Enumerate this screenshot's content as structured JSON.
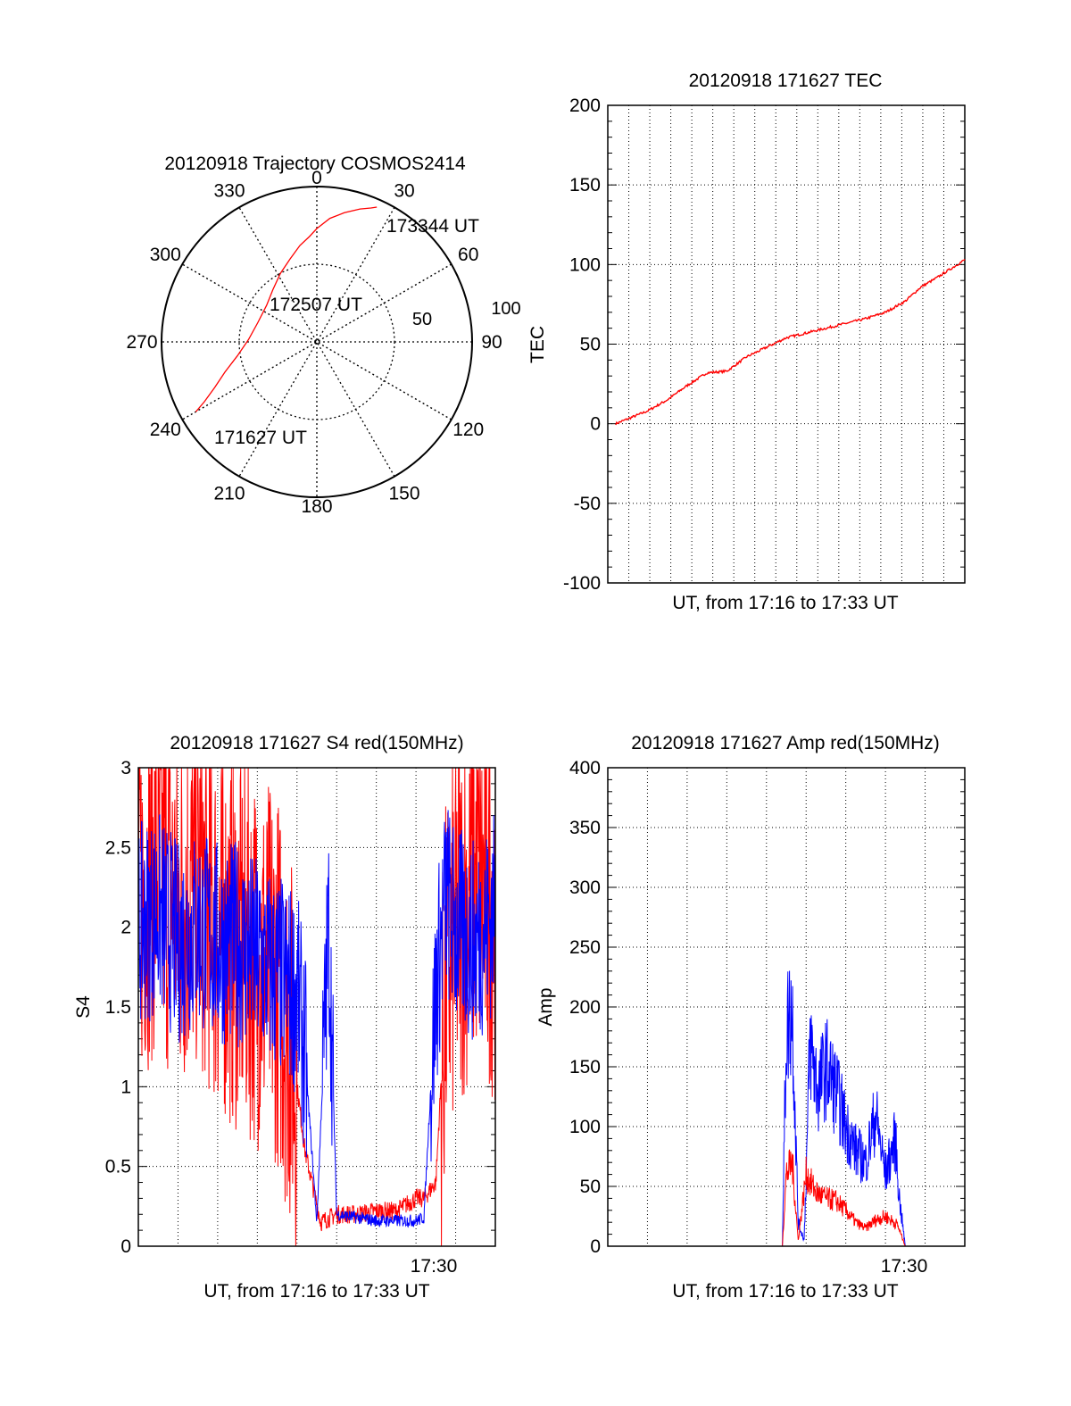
{
  "colors": {
    "red": "#ff0000",
    "blue": "#0000ff",
    "axis": "#000000"
  },
  "panels": {
    "polar": {
      "title": "20120918 Trajectory COSMOS2414",
      "azimuth_labels": [
        "0",
        "30",
        "60",
        "90",
        "120",
        "150",
        "180",
        "210",
        "240",
        "270",
        "300",
        "330"
      ],
      "radial_labels": [
        "50",
        "100"
      ],
      "time_labels": {
        "start": "171627 UT",
        "mid": "172507 UT",
        "end": "173344 UT"
      }
    },
    "tec": {
      "title": "20120918 171627 TEC",
      "ylabel": "TEC",
      "xlabel": "UT, from 17:16 to 17:33 UT",
      "yticks": [
        "200",
        "150",
        "100",
        "50",
        "0",
        "-50",
        "-100"
      ]
    },
    "s4": {
      "title": "20120918 171627 S4 red(150MHz)",
      "ylabel": "S4",
      "xlabel": "UT, from 17:16 to 17:33 UT",
      "xtick": "17:30",
      "yticks": [
        "3",
        "2.5",
        "2",
        "1.5",
        "1",
        "0.5",
        "0"
      ]
    },
    "amp": {
      "title": "20120918 171627 Amp red(150MHz)",
      "ylabel": "Amp",
      "xlabel": "UT, from 17:16 to 17:33 UT",
      "xtick": "17:30",
      "yticks": [
        "400",
        "350",
        "300",
        "250",
        "200",
        "150",
        "100",
        "50",
        "0"
      ]
    }
  },
  "chart_data": [
    {
      "type": "scatter",
      "subtype": "polar-trajectory",
      "title": "20120918 Trajectory COSMOS2414",
      "angular_axis": "azimuth (deg, clockwise from top)",
      "radial_axis": "zenith distance (outer ring 100)",
      "series": [
        {
          "color": "#ff0000",
          "points": [
            [
              240,
              90
            ],
            [
              242,
              82
            ],
            [
              246,
              72
            ],
            [
              252,
              62
            ],
            [
              260,
              52
            ],
            [
              272,
              44
            ],
            [
              288,
              40
            ],
            [
              306,
              40
            ],
            [
              320,
              44
            ],
            [
              332,
              50
            ],
            [
              342,
              56
            ],
            [
              350,
              63
            ],
            [
              356,
              68
            ],
            [
              0,
              73
            ],
            [
              6,
              80
            ],
            [
              12,
              85
            ],
            [
              18,
              90
            ],
            [
              22,
              93
            ],
            [
              24,
              95
            ]
          ]
        }
      ],
      "annotations": [
        "171627 UT",
        "172507 UT",
        "173344 UT"
      ]
    },
    {
      "type": "line",
      "title": "20120918 171627 TEC",
      "xlabel": "UT, from 17:16 to 17:33 UT",
      "ylabel": "TEC",
      "ylim": [
        -100,
        200
      ],
      "x_unit": "minutes after 17:16",
      "xlim": [
        0,
        18
      ],
      "series": [
        {
          "color": "#ff0000",
          "x": [
            0.4,
            1,
            2,
            3,
            4,
            5,
            6,
            7,
            8,
            9,
            10,
            11,
            12,
            13,
            14,
            15,
            15.8,
            16.5,
            17,
            17.5,
            18
          ],
          "y": [
            0,
            3,
            8,
            15,
            24,
            32,
            33,
            42,
            48,
            54,
            57,
            60,
            63,
            66,
            70,
            77,
            86,
            91,
            95,
            99,
            103
          ]
        }
      ]
    },
    {
      "type": "line",
      "title": "20120918 171627 S4 red(150MHz)",
      "xlabel": "UT, from 17:16 to 17:33 UT",
      "ylabel": "S4",
      "ylim": [
        0,
        3
      ],
      "xlim": [
        0,
        18
      ],
      "x_unit": "minutes after 17:16",
      "x_tick_label": "17:30",
      "series": [
        {
          "color": "#ff0000",
          "x": [
            0,
            1,
            2,
            3,
            4,
            5,
            6,
            7,
            7.8,
            8.4,
            9.2,
            10,
            11,
            12,
            13,
            14,
            14.4,
            15,
            15.5,
            16,
            17,
            18
          ],
          "y": [
            2.2,
            2.4,
            2.1,
            2.3,
            2.0,
            1.9,
            1.8,
            1.7,
            1.2,
            0.6,
            0.15,
            0.2,
            0.2,
            0.22,
            0.22,
            0.3,
            0.3,
            0.4,
            1.6,
            2.0,
            2.3,
            2.1
          ]
        },
        {
          "color": "#0000ff",
          "x": [
            0,
            1,
            2,
            3,
            4,
            5,
            6,
            7,
            8,
            8.4,
            9,
            9.6,
            10,
            11,
            12,
            13,
            14,
            14.4,
            15,
            15.5,
            16,
            17,
            18
          ],
          "y": [
            2.0,
            2.1,
            1.9,
            2.0,
            1.9,
            1.9,
            1.8,
            1.7,
            1.6,
            1.2,
            0.15,
            2.0,
            0.2,
            0.18,
            0.16,
            0.16,
            0.16,
            0.18,
            1.6,
            2.2,
            2.0,
            1.9,
            2.1
          ]
        }
      ]
    },
    {
      "type": "line",
      "title": "20120918 171627 Amp red(150MHz)",
      "xlabel": "UT, from 17:16 to 17:33 UT",
      "ylabel": "Amp",
      "ylim": [
        0,
        400
      ],
      "xlim": [
        0,
        18
      ],
      "x_unit": "minutes after 17:16",
      "x_tick_label": "17:30",
      "series": [
        {
          "color": "#ff0000",
          "x": [
            0,
            8,
            8.8,
            9,
            9.3,
            9.6,
            10,
            10.5,
            11,
            11.5,
            12,
            12.5,
            13,
            13.5,
            14,
            14.6,
            15,
            16,
            18
          ],
          "y": [
            0,
            0,
            0,
            60,
            70,
            5,
            60,
            45,
            40,
            38,
            30,
            20,
            15,
            22,
            25,
            18,
            0,
            0,
            0
          ]
        },
        {
          "color": "#0000ff",
          "x": [
            0,
            8.8,
            9,
            9.3,
            9.6,
            9.9,
            10.2,
            10.6,
            11,
            11.5,
            12,
            12.5,
            13,
            13.5,
            14,
            14.5,
            14.7,
            15,
            16,
            18
          ],
          "y": [
            0,
            0,
            180,
            200,
            20,
            5,
            170,
            130,
            150,
            130,
            100,
            80,
            70,
            110,
            60,
            90,
            40,
            0,
            0,
            0
          ]
        }
      ]
    }
  ]
}
